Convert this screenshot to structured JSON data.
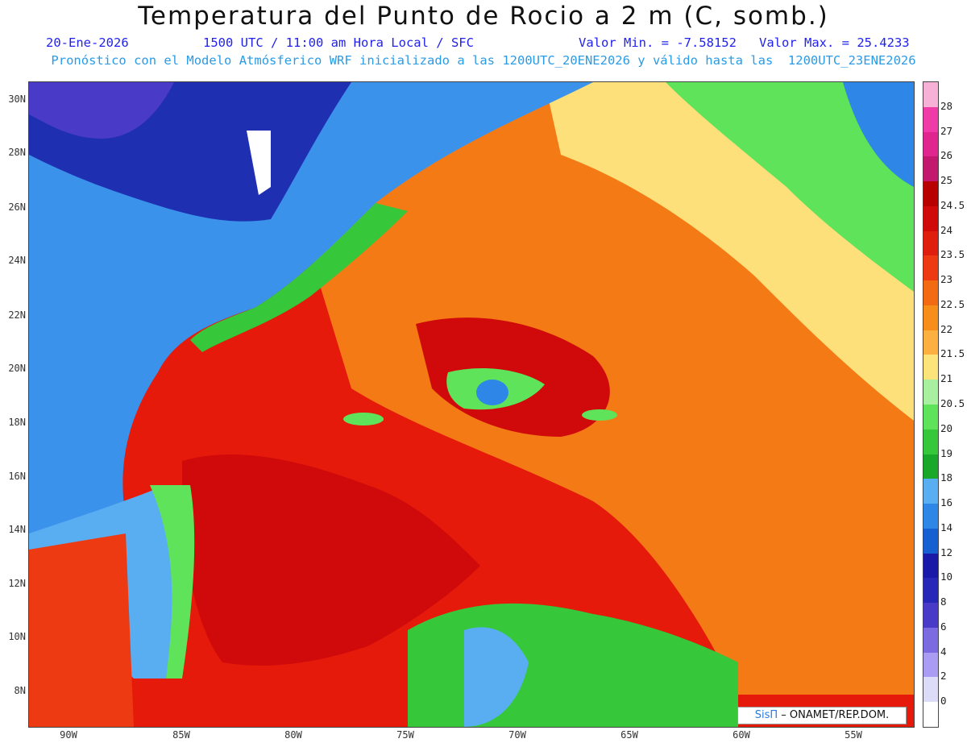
{
  "header": {
    "title": "Temperatura del Punto de Rocio a 2 m (C, somb.)",
    "date": "20-Ene-2026",
    "time": "1500 UTC / 11:00 am Hora Local / SFC",
    "min": "Valor Min. = -7.58152",
    "max": "Valor Max. = 25.4233",
    "model": "Pronóstico con el Modelo Atmósferico WRF inicializado a las 1200UTC_20ENE2026 y válido hasta las  1200UTC_23ENE2026"
  },
  "axes": {
    "lat_labels": [
      "30N",
      "28N",
      "26N",
      "24N",
      "22N",
      "20N",
      "18N",
      "16N",
      "14N",
      "12N",
      "10N",
      "8N"
    ],
    "lon_labels": [
      "90W",
      "85W",
      "80W",
      "75W",
      "70W",
      "65W",
      "60W",
      "55W"
    ]
  },
  "legend": {
    "labels": [
      "28",
      "27",
      "26",
      "25",
      "24.5",
      "24",
      "23.5",
      "23",
      "22.5",
      "22",
      "21.5",
      "21",
      "20.5",
      "20",
      "19",
      "18",
      "16",
      "14",
      "12",
      "10",
      "8",
      "6",
      "4",
      "2",
      "0"
    ],
    "colors": [
      "#f7b0d6",
      "#ef3aa8",
      "#e0268e",
      "#c2186e",
      "#b80000",
      "#d00a0a",
      "#e01e0e",
      "#ee3a12",
      "#f26a12",
      "#f88e1a",
      "#fbb040",
      "#fde47a",
      "#a8f0a0",
      "#5ee35a",
      "#36c83a",
      "#1aa82a",
      "#58aef0",
      "#2e86e6",
      "#1760d2",
      "#1a1aa8",
      "#2828b8",
      "#4a3ac8",
      "#7c6ae0",
      "#a99cf2",
      "#dcdcf8",
      "#ffffff"
    ]
  },
  "credit": {
    "brand": "SisΠ",
    "text": " – ONAMET/REP.DOM."
  }
}
